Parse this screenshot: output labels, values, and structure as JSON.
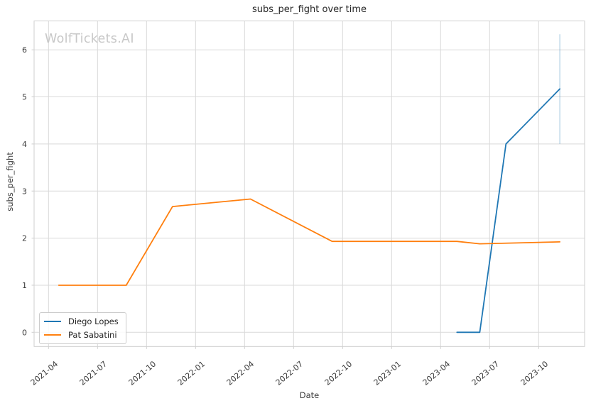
{
  "watermark": "WolfTickets.AI",
  "chart_data": {
    "type": "line",
    "title": "subs_per_fight over time",
    "xlabel": "Date",
    "ylabel": "subs_per_fight",
    "x_tick_labels": [
      "2021-04",
      "2021-07",
      "2021-10",
      "2022-01",
      "2022-04",
      "2022-07",
      "2022-10",
      "2023-01",
      "2023-04",
      "2023-07",
      "2023-10"
    ],
    "y_ticks": [
      0,
      1,
      2,
      3,
      4,
      5,
      6
    ],
    "ylim": [
      -0.3,
      6.62
    ],
    "xlim": [
      "2021-03-06",
      "2023-12-26"
    ],
    "grid": true,
    "legend": {
      "position": "lower left",
      "items": [
        "Diego Lopes",
        "Pat Sabatini"
      ]
    },
    "series": [
      {
        "name": "Diego Lopes",
        "color": "#1f77b4",
        "points": [
          [
            "2023-05-01",
            0.0
          ],
          [
            "2023-06-13",
            0.0
          ],
          [
            "2023-08-01",
            4.0
          ],
          [
            "2023-11-10",
            5.17
          ]
        ],
        "ci_last": {
          "low": 4.0,
          "high": 6.33
        }
      },
      {
        "name": "Pat Sabatini",
        "color": "#ff7f0e",
        "points": [
          [
            "2021-04-20",
            1.0
          ],
          [
            "2021-08-24",
            1.0
          ],
          [
            "2021-11-19",
            2.67
          ],
          [
            "2022-04-12",
            2.83
          ],
          [
            "2022-09-12",
            1.93
          ],
          [
            "2023-05-01",
            1.93
          ],
          [
            "2023-06-13",
            1.88
          ],
          [
            "2023-11-10",
            1.92
          ]
        ]
      }
    ],
    "colors": {
      "grid": "#d9d9d9",
      "spine": "#cfcfcf",
      "tick_text": "#3a3a3a",
      "title_text": "#262626",
      "watermark": "#c8c8c8",
      "ci_line": "rgba(31,119,180,0.35)"
    }
  }
}
